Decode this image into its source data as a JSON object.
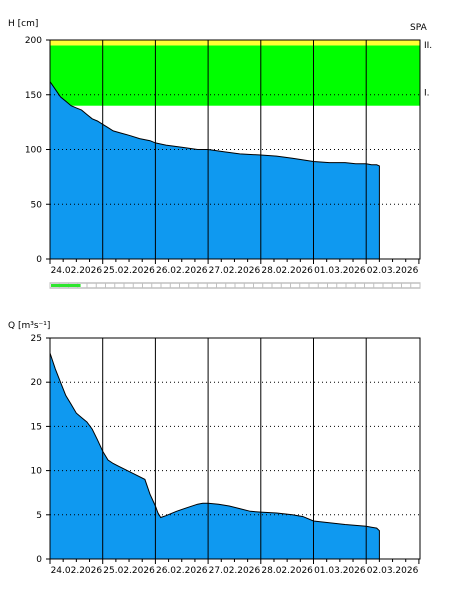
{
  "chart_data": [
    {
      "type": "area",
      "ylabel": "H [cm]",
      "corner_label": "SPA",
      "ylim": [
        0,
        200
      ],
      "yticks": [
        "0",
        "50",
        "100",
        "150",
        "200"
      ],
      "x_tick_labels": [
        "24.02.2026",
        "25.02.2026",
        "26.02.2026",
        "27.02.2026",
        "28.02.2026",
        "01.03.2026",
        "02.03.2026"
      ],
      "x_range_days": [
        0,
        7.2
      ],
      "fill_color": "#0f99f0",
      "bands": [
        {
          "label": "I.",
          "from": 140,
          "to": 195,
          "color": "#00ff00"
        },
        {
          "label": "II.",
          "from": 195,
          "to": 200,
          "color": "#ffff33"
        }
      ],
      "series": [
        {
          "x": [
            0,
            0.1,
            0.2,
            0.3,
            0.4,
            0.5,
            0.6,
            0.7,
            0.8,
            0.9,
            1.0,
            1.1,
            1.2,
            1.35,
            1.5,
            1.7,
            1.9,
            2.0,
            2.2,
            2.5,
            2.8,
            3.0,
            3.3,
            3.6,
            4.0,
            4.3,
            4.6,
            5.0,
            5.3,
            5.6,
            5.8,
            6.0,
            6.1,
            6.2,
            6.25,
            6.25
          ],
          "values": [
            162,
            155,
            148,
            144,
            140,
            138,
            136,
            132,
            128,
            126,
            123,
            120,
            117,
            115,
            113,
            110,
            108,
            106,
            104,
            102,
            100,
            100,
            98,
            96,
            95,
            94,
            92,
            89,
            88,
            88,
            87,
            87,
            86,
            86,
            85,
            0
          ]
        }
      ]
    },
    {
      "type": "area",
      "ylabel": "Q [m³s⁻¹]",
      "ylim": [
        0,
        25
      ],
      "yticks": [
        "0",
        "5",
        "10",
        "15",
        "20",
        "25"
      ],
      "x_tick_labels": [
        "24.02.2026",
        "25.02.2026",
        "26.02.2026",
        "27.02.2026",
        "28.02.2026",
        "01.03.2026",
        "02.03.2026"
      ],
      "x_range_days": [
        0,
        7.2
      ],
      "fill_color": "#0f99f0",
      "series": [
        {
          "x": [
            0,
            0.1,
            0.2,
            0.3,
            0.4,
            0.5,
            0.6,
            0.7,
            0.8,
            0.9,
            1.0,
            1.1,
            1.2,
            1.3,
            1.4,
            1.6,
            1.8,
            1.9,
            2.0,
            2.05,
            2.1,
            2.2,
            2.4,
            2.6,
            2.8,
            2.9,
            3.0,
            3.2,
            3.4,
            3.6,
            3.8,
            4.0,
            4.3,
            4.6,
            4.8,
            5.0,
            5.3,
            5.6,
            5.8,
            6.0,
            6.1,
            6.2,
            6.25,
            6.25
          ],
          "values": [
            23.3,
            21.5,
            20,
            18.5,
            17.5,
            16.5,
            16,
            15.5,
            14.7,
            13.5,
            12.2,
            11.2,
            10.8,
            10.5,
            10.2,
            9.6,
            9,
            7.3,
            6,
            5.2,
            4.7,
            4.9,
            5.4,
            5.8,
            6.2,
            6.3,
            6.3,
            6.2,
            6,
            5.7,
            5.4,
            5.3,
            5.2,
            5,
            4.8,
            4.3,
            4.1,
            3.9,
            3.8,
            3.7,
            3.6,
            3.5,
            3.2,
            0
          ]
        }
      ]
    }
  ],
  "scrollbar": {
    "position": 0.0,
    "thumb_fraction": 0.08
  }
}
